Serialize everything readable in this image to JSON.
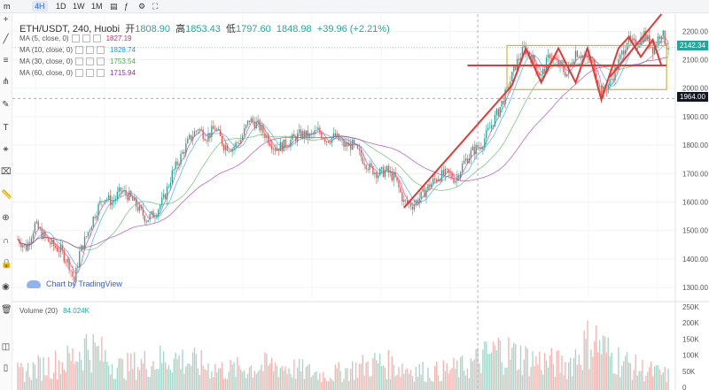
{
  "toolbar": {
    "intervals": [
      "m",
      "4H",
      "1D",
      "1W",
      "1M"
    ],
    "active_interval": "4H"
  },
  "legend": {
    "symbol": "ETH/USDT, 240, Huobi",
    "open_label": "开",
    "open": "1808.90",
    "high_label": "高",
    "high": "1853.43",
    "low_label": "低",
    "low": "1797.60",
    "close": "1848.98",
    "change": "+39.96 (+2.21%)"
  },
  "moving_averages": [
    {
      "label": "MA (5, close, 0)",
      "value": "1827.19",
      "color": "#e91e63"
    },
    {
      "label": "MA (10, close, 0)",
      "value": "1828.74",
      "color": "#2196f3"
    },
    {
      "label": "MA (30, close, 0)",
      "value": "1753.54",
      "color": "#4caf50"
    },
    {
      "label": "MA (60, close, 0)",
      "value": "1715.94",
      "color": "#9c27b0"
    }
  ],
  "volume_legend": {
    "label": "Volume (20)",
    "value": "84.024K"
  },
  "watermark": "Chart by TradingView",
  "price_tags": {
    "last": "2142.34",
    "crosshair": "1964.00"
  },
  "colors": {
    "up": "#26a69a",
    "down": "#ef5350",
    "drawing": "#e53935",
    "rect": "#d4b43a"
  },
  "chart_data": {
    "type": "candlestick",
    "title": "ETH/USDT, 240, Huobi",
    "y_ticks": [
      2200,
      2100,
      2000,
      1900,
      1800,
      1700,
      1600,
      1500,
      1400,
      1300
    ],
    "ylim": [
      1260,
      2260
    ],
    "volume_ticks": [
      "250K",
      "200K",
      "150K",
      "100K",
      "50K",
      "0"
    ],
    "volume_ylim": [
      0,
      250000
    ],
    "path_points": [
      [
        0,
        1470
      ],
      [
        5,
        1440
      ],
      [
        10,
        1520
      ],
      [
        15,
        1480
      ],
      [
        20,
        1450
      ],
      [
        25,
        1430
      ],
      [
        30,
        1380
      ],
      [
        33,
        1320
      ],
      [
        36,
        1420
      ],
      [
        40,
        1480
      ],
      [
        45,
        1560
      ],
      [
        50,
        1620
      ],
      [
        55,
        1600
      ],
      [
        60,
        1640
      ],
      [
        65,
        1620
      ],
      [
        70,
        1580
      ],
      [
        75,
        1540
      ],
      [
        80,
        1560
      ],
      [
        85,
        1610
      ],
      [
        90,
        1700
      ],
      [
        95,
        1760
      ],
      [
        100,
        1820
      ],
      [
        105,
        1860
      ],
      [
        110,
        1830
      ],
      [
        115,
        1860
      ],
      [
        120,
        1800
      ],
      [
        125,
        1790
      ],
      [
        130,
        1820
      ],
      [
        135,
        1890
      ],
      [
        140,
        1870
      ],
      [
        145,
        1830
      ],
      [
        150,
        1790
      ],
      [
        155,
        1800
      ],
      [
        160,
        1820
      ],
      [
        165,
        1840
      ],
      [
        170,
        1830
      ],
      [
        175,
        1850
      ],
      [
        180,
        1820
      ],
      [
        185,
        1830
      ],
      [
        190,
        1800
      ],
      [
        195,
        1800
      ],
      [
        200,
        1760
      ],
      [
        205,
        1720
      ],
      [
        210,
        1700
      ],
      [
        215,
        1710
      ],
      [
        220,
        1680
      ],
      [
        225,
        1600
      ],
      [
        230,
        1590
      ],
      [
        235,
        1620
      ],
      [
        240,
        1660
      ],
      [
        245,
        1690
      ],
      [
        250,
        1700
      ],
      [
        255,
        1680
      ],
      [
        260,
        1740
      ],
      [
        265,
        1780
      ],
      [
        270,
        1800
      ],
      [
        275,
        1860
      ],
      [
        280,
        1920
      ],
      [
        285,
        1990
      ],
      [
        290,
        2080
      ],
      [
        295,
        2140
      ],
      [
        300,
        2100
      ],
      [
        305,
        2040
      ],
      [
        310,
        2120
      ],
      [
        315,
        2080
      ],
      [
        320,
        2050
      ],
      [
        325,
        2130
      ],
      [
        330,
        2110
      ],
      [
        335,
        2090
      ],
      [
        340,
        1980
      ],
      [
        345,
        2020
      ],
      [
        350,
        2090
      ],
      [
        355,
        2170
      ],
      [
        360,
        2150
      ],
      [
        365,
        2190
      ],
      [
        370,
        2140
      ],
      [
        375,
        2200
      ],
      [
        378,
        2150
      ]
    ],
    "volume_path": [
      [
        0,
        70
      ],
      [
        30,
        120
      ],
      [
        40,
        180
      ],
      [
        60,
        90
      ],
      [
        90,
        130
      ],
      [
        120,
        80
      ],
      [
        150,
        100
      ],
      [
        180,
        60
      ],
      [
        210,
        110
      ],
      [
        240,
        70
      ],
      [
        260,
        90
      ],
      [
        280,
        160
      ],
      [
        300,
        120
      ],
      [
        320,
        100
      ],
      [
        335,
        210
      ],
      [
        345,
        140
      ],
      [
        360,
        90
      ],
      [
        378,
        60
      ]
    ],
    "ma_periods": [
      5,
      10,
      30,
      60
    ],
    "drawings": {
      "trend_up": [
        [
          [
            225,
            1580
          ],
          [
            288,
            2010
          ]
        ],
        [
          [
            345,
            2040
          ],
          [
            375,
            2260
          ]
        ]
      ],
      "triangle_wave": [
        [
          288,
          2010
        ],
        [
          296,
          2140
        ],
        [
          305,
          2020
        ],
        [
          315,
          2140
        ],
        [
          325,
          2020
        ],
        [
          332,
          2140
        ],
        [
          340,
          1960
        ],
        [
          350,
          2140
        ],
        [
          356,
          2180
        ],
        [
          363,
          2110
        ],
        [
          370,
          2170
        ],
        [
          375,
          2080
        ]
      ],
      "horizontal": [
        [
          262,
          2080
        ],
        [
          378,
          2080
        ]
      ],
      "rect": [
        [
          285,
          2150
        ],
        [
          378,
          1995
        ]
      ]
    }
  }
}
